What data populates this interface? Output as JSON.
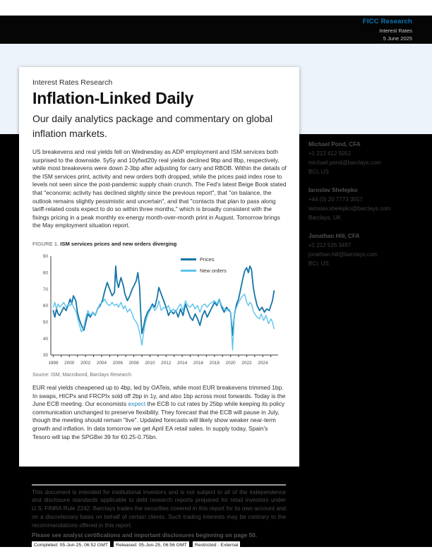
{
  "header": {
    "brand": "FICC Research",
    "division": "Interest Rates",
    "date": "5 June 2025"
  },
  "masthead": {
    "kicker": "Interest Rates Research",
    "title": "Inflation-Linked Daily",
    "subtitle": "Our daily analytics package and commentary on global inflation markets."
  },
  "body": {
    "para1": "US breakevens and real yields fell on Wednesday as ADP employment and ISM services both surprised to the downside. 5y5y and 10yfwd20y real yields declined 9bp and 8bp, respectively, while most breakevens were down 2-3bp after adjusting for carry and RBOB. Within the details of the ISM services print, activity and new orders both dropped, while the prices paid index rose to levels not seen since the post-pandemic supply chain crunch. The Fed's latest Beige Book stated that \"economic activity has declined slightly since the previous report\", that \"on balance, the outlook remains slightly pessimistic and uncertain\", and that \"contacts that plan to pass along tariff-related costs expect to do so within three months,\" which is broadly consistent with the fixings pricing in a peak monthly ex-energy month-over-month print in August. Tomorrow brings the May employment situation report.",
    "para2_before": "EUR real yields cheapened up to 4bp, led by OATeis, while most EUR breakevens trimmed 1bp. In swaps, HICPx and FRCPIx sold off 2bp in 1y, and also 1bp across most forwards. Today is the June ECB meeting. Our economists ",
    "para2_link": "expect",
    "para2_after": " the ECB to cut rates by 25bp while keeping its policy communication unchanged to preserve flexibility. They forecast that the ECB will pause in July, though the meeting should remain \"live\". Updated forecasts will likely show weaker near-term growth and inflation. In data tomorrow we get April EA retail sales. In supply today, Spain's Tesoro will tap the SPGBei 39 for €0.25-0.75bn."
  },
  "figure": {
    "label": "FIGURE 1.",
    "caption": "ISM services prices and new orders diverging",
    "source": "Source: ISM, Macrobond, Barclays Research"
  },
  "chart_data": {
    "type": "line",
    "title": "ISM services prices and new orders diverging",
    "xlabel": "",
    "ylabel": "",
    "xlim": [
      1997.7,
      2025.9
    ],
    "ylim": [
      30,
      90
    ],
    "x_ticks": [
      1998,
      2000,
      2002,
      2004,
      2006,
      2008,
      2010,
      2012,
      2014,
      2016,
      2018,
      2020,
      2022,
      2024
    ],
    "y_ticks": [
      30,
      40,
      50,
      60,
      70,
      80,
      90
    ],
    "grid": false,
    "legend_position": "inside-top-center",
    "series": [
      {
        "name": "Prices",
        "color": "#1474a6",
        "points": [
          [
            1998.0,
            57
          ],
          [
            1998.2,
            53
          ],
          [
            1998.4,
            58
          ],
          [
            1998.6,
            55
          ],
          [
            1998.8,
            54
          ],
          [
            1999.0,
            56
          ],
          [
            1999.3,
            59
          ],
          [
            1999.6,
            57
          ],
          [
            1999.9,
            61
          ],
          [
            2000.1,
            64
          ],
          [
            2000.3,
            61
          ],
          [
            2000.5,
            66
          ],
          [
            2000.8,
            63
          ],
          [
            2001.0,
            56
          ],
          [
            2001.2,
            52
          ],
          [
            2001.5,
            48
          ],
          [
            2001.8,
            45
          ],
          [
            2002.0,
            49
          ],
          [
            2002.3,
            55
          ],
          [
            2002.6,
            53
          ],
          [
            2002.9,
            56
          ],
          [
            2003.2,
            54
          ],
          [
            2003.5,
            58
          ],
          [
            2003.8,
            60
          ],
          [
            2004.1,
            63
          ],
          [
            2004.4,
            69
          ],
          [
            2004.7,
            74
          ],
          [
            2005.0,
            70
          ],
          [
            2005.3,
            66
          ],
          [
            2005.6,
            68
          ],
          [
            2005.75,
            84
          ],
          [
            2005.9,
            75
          ],
          [
            2006.1,
            71
          ],
          [
            2006.4,
            77
          ],
          [
            2006.7,
            72
          ],
          [
            2006.9,
            67
          ],
          [
            2007.2,
            63
          ],
          [
            2007.5,
            66
          ],
          [
            2007.8,
            70
          ],
          [
            2008.0,
            72
          ],
          [
            2008.3,
            75
          ],
          [
            2008.5,
            80
          ],
          [
            2008.7,
            72
          ],
          [
            2008.9,
            51
          ],
          [
            2009.0,
            43
          ],
          [
            2009.2,
            47
          ],
          [
            2009.4,
            52
          ],
          [
            2009.7,
            56
          ],
          [
            2010.0,
            58
          ],
          [
            2010.3,
            61
          ],
          [
            2010.6,
            59
          ],
          [
            2010.9,
            65
          ],
          [
            2011.1,
            71
          ],
          [
            2011.4,
            67
          ],
          [
            2011.7,
            63
          ],
          [
            2012.0,
            59
          ],
          [
            2012.3,
            54
          ],
          [
            2012.6,
            57
          ],
          [
            2012.9,
            55
          ],
          [
            2013.2,
            57
          ],
          [
            2013.5,
            53
          ],
          [
            2013.8,
            58
          ],
          [
            2014.1,
            54
          ],
          [
            2014.4,
            61
          ],
          [
            2014.7,
            57
          ],
          [
            2015.0,
            53
          ],
          [
            2015.3,
            51
          ],
          [
            2015.6,
            55
          ],
          [
            2015.9,
            52
          ],
          [
            2016.2,
            48
          ],
          [
            2016.5,
            54
          ],
          [
            2016.8,
            57
          ],
          [
            2017.1,
            53
          ],
          [
            2017.4,
            56
          ],
          [
            2017.7,
            59
          ],
          [
            2018.0,
            62
          ],
          [
            2018.3,
            60
          ],
          [
            2018.6,
            64
          ],
          [
            2018.9,
            59
          ],
          [
            2019.2,
            56
          ],
          [
            2019.5,
            59
          ],
          [
            2019.8,
            57
          ],
          [
            2020.0,
            56
          ],
          [
            2020.25,
            42
          ],
          [
            2020.5,
            55
          ],
          [
            2020.75,
            61
          ],
          [
            2021.0,
            64
          ],
          [
            2021.25,
            70
          ],
          [
            2021.5,
            76
          ],
          [
            2021.75,
            81
          ],
          [
            2022.0,
            83
          ],
          [
            2022.2,
            80
          ],
          [
            2022.4,
            84
          ],
          [
            2022.6,
            82
          ],
          [
            2022.8,
            72
          ],
          [
            2023.0,
            66
          ],
          [
            2023.3,
            60
          ],
          [
            2023.6,
            57
          ],
          [
            2023.9,
            59
          ],
          [
            2024.2,
            56
          ],
          [
            2024.5,
            58
          ],
          [
            2024.8,
            57
          ],
          [
            2025.0,
            60
          ],
          [
            2025.2,
            63
          ],
          [
            2025.4,
            69
          ]
        ]
      },
      {
        "name": "New orders",
        "color": "#5cc3ec",
        "points": [
          [
            1998.0,
            59
          ],
          [
            1998.2,
            62
          ],
          [
            1998.4,
            58
          ],
          [
            1998.6,
            61
          ],
          [
            1998.8,
            59
          ],
          [
            1999.0,
            60
          ],
          [
            1999.3,
            62
          ],
          [
            1999.6,
            59
          ],
          [
            1999.9,
            61
          ],
          [
            2000.1,
            60
          ],
          [
            2000.3,
            62
          ],
          [
            2000.5,
            59
          ],
          [
            2000.8,
            57
          ],
          [
            2001.0,
            53
          ],
          [
            2001.2,
            49
          ],
          [
            2001.5,
            44
          ],
          [
            2001.8,
            47
          ],
          [
            2002.0,
            52
          ],
          [
            2002.3,
            57
          ],
          [
            2002.6,
            54
          ],
          [
            2002.9,
            56
          ],
          [
            2003.2,
            54
          ],
          [
            2003.5,
            58
          ],
          [
            2003.8,
            61
          ],
          [
            2004.1,
            62
          ],
          [
            2004.4,
            64
          ],
          [
            2004.7,
            61
          ],
          [
            2005.0,
            60
          ],
          [
            2005.3,
            62
          ],
          [
            2005.6,
            60
          ],
          [
            2005.9,
            61
          ],
          [
            2006.1,
            59
          ],
          [
            2006.4,
            62
          ],
          [
            2006.7,
            58
          ],
          [
            2006.9,
            60
          ],
          [
            2007.2,
            56
          ],
          [
            2007.5,
            58
          ],
          [
            2007.8,
            55
          ],
          [
            2008.0,
            52
          ],
          [
            2008.3,
            50
          ],
          [
            2008.5,
            48
          ],
          [
            2008.7,
            44
          ],
          [
            2008.9,
            39
          ],
          [
            2009.0,
            36
          ],
          [
            2009.2,
            43
          ],
          [
            2009.4,
            49
          ],
          [
            2009.7,
            54
          ],
          [
            2010.0,
            57
          ],
          [
            2010.3,
            60
          ],
          [
            2010.6,
            57
          ],
          [
            2010.9,
            59
          ],
          [
            2011.1,
            63
          ],
          [
            2011.4,
            57
          ],
          [
            2011.7,
            59
          ],
          [
            2012.0,
            58
          ],
          [
            2012.3,
            60
          ],
          [
            2012.6,
            56
          ],
          [
            2012.9,
            58
          ],
          [
            2013.2,
            56
          ],
          [
            2013.5,
            59
          ],
          [
            2013.8,
            61
          ],
          [
            2014.1,
            57
          ],
          [
            2014.4,
            63
          ],
          [
            2014.7,
            60
          ],
          [
            2015.0,
            59
          ],
          [
            2015.3,
            61
          ],
          [
            2015.6,
            58
          ],
          [
            2015.9,
            60
          ],
          [
            2016.2,
            56
          ],
          [
            2016.5,
            60
          ],
          [
            2016.8,
            61
          ],
          [
            2017.1,
            59
          ],
          [
            2017.4,
            61
          ],
          [
            2017.7,
            62
          ],
          [
            2018.0,
            63
          ],
          [
            2018.3,
            61
          ],
          [
            2018.6,
            64
          ],
          [
            2018.9,
            60
          ],
          [
            2019.2,
            58
          ],
          [
            2019.5,
            57
          ],
          [
            2019.8,
            58
          ],
          [
            2020.0,
            56
          ],
          [
            2020.25,
            33
          ],
          [
            2020.5,
            56
          ],
          [
            2020.75,
            59
          ],
          [
            2021.0,
            62
          ],
          [
            2021.25,
            64
          ],
          [
            2021.5,
            66
          ],
          [
            2021.75,
            67
          ],
          [
            2022.0,
            62
          ],
          [
            2022.2,
            60
          ],
          [
            2022.4,
            62
          ],
          [
            2022.6,
            61
          ],
          [
            2022.8,
            57
          ],
          [
            2023.0,
            55
          ],
          [
            2023.3,
            53
          ],
          [
            2023.6,
            52
          ],
          [
            2023.8,
            55
          ],
          [
            2024.1,
            51
          ],
          [
            2024.4,
            54
          ],
          [
            2024.7,
            49
          ],
          [
            2025.0,
            52
          ],
          [
            2025.2,
            50
          ],
          [
            2025.4,
            46
          ]
        ]
      }
    ]
  },
  "analysts": [
    {
      "name": "Michael Pond, CFA",
      "phone": "+1 212 412 5051",
      "email": "michael.pond@barclays.com",
      "entity": "BCI, US"
    },
    {
      "name": "Iaroslav Shelepko",
      "phone": "+44 (0) 20 7773 3557",
      "email": "iaroslav.shelepko@barclays.com",
      "entity": "Barclays, UK"
    },
    {
      "name": "Jonathan Hill, CFA",
      "phone": "+1 212 526 3497",
      "email": "jonathan.hill@barclays.com",
      "entity": "BCI, US"
    }
  ],
  "disclaimer": {
    "text": "This document is intended for institutional investors and is not subject to all of the independence and disclosure standards applicable to debt research reports prepared for retail investors under U.S. FINRA Rule 2242. Barclays trades the securities covered in this report for its own account and on a discretionary basis on behalf of certain clients. Such trading interests may be contrary to the recommendations offered in this report.",
    "bold_line": "Please see analyst certifications and important disclosures beginning on page 50."
  },
  "footer": {
    "chips": [
      "Completed: 05-Jun-25, 06:52 GMT",
      "Released: 05-Jun-25, 06:56 GMT",
      "Restricted - External"
    ]
  },
  "colors": {
    "accent_blue": "#0b76b8",
    "link_blue": "#1b87c4",
    "prices_line": "#1474a6",
    "new_orders_line": "#5cc3ec",
    "light_band": "#edf3fa"
  }
}
